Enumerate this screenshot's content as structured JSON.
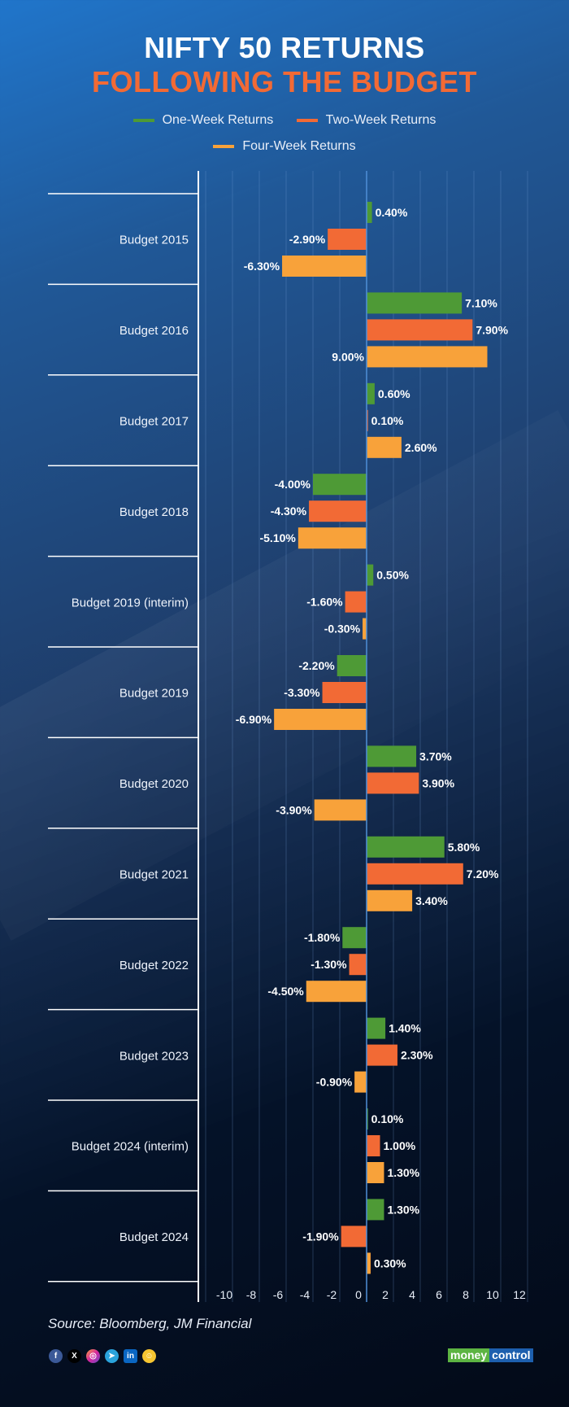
{
  "header": {
    "title_line1": "NIFTY 50 RETURNS",
    "title_line2": "FOLLOWING THE BUDGET"
  },
  "legend": [
    {
      "label": "One-Week Returns",
      "color": "#4e9a36"
    },
    {
      "label": "Two-Week Returns",
      "color": "#f26a35"
    },
    {
      "label": "Four-Week Returns",
      "color": "#f8a23a"
    }
  ],
  "footer": {
    "source": "Source: Bloomberg, JM Financial",
    "social_icons": [
      "facebook-icon",
      "x-icon",
      "instagram-icon",
      "telegram-icon",
      "linkedin-icon",
      "snapchat-icon"
    ],
    "logo_part1": "money",
    "logo_part2": "control"
  },
  "chart_data": {
    "type": "bar",
    "orientation": "horizontal",
    "title": "NIFTY 50 RETURNS FOLLOWING THE BUDGET",
    "xlabel": "",
    "ylabel": "",
    "xlim": [
      -12,
      12
    ],
    "x_ticks": [
      -10,
      -8,
      -6,
      -4,
      -2,
      0,
      2,
      4,
      6,
      8,
      10,
      12
    ],
    "grid": true,
    "legend_position": "top-center",
    "categories": [
      "Budget 2015",
      "Budget 2016",
      "Budget 2017",
      "Budget 2018",
      "Budget 2019 (interim)",
      "Budget 2019",
      "Budget 2020",
      "Budget 2021",
      "Budget 2022",
      "Budget 2023",
      "Budget 2024 (interim)",
      "Budget 2024"
    ],
    "series": [
      {
        "name": "One-Week Returns",
        "color": "#4e9a36",
        "values": [
          0.4,
          7.1,
          0.6,
          -4.0,
          0.5,
          -2.2,
          3.7,
          5.8,
          -1.8,
          1.4,
          0.1,
          1.3
        ],
        "labels": [
          "0.40%",
          "7.10%",
          "0.60%",
          "-4.00%",
          "0.50%",
          "-2.20%",
          "3.70%",
          "5.80%",
          "-1.80%",
          "1.40%",
          "0.10%",
          "1.30%"
        ]
      },
      {
        "name": "Two-Week Returns",
        "color": "#f26a35",
        "values": [
          -2.9,
          7.9,
          0.1,
          -4.3,
          -1.6,
          -3.3,
          3.9,
          7.2,
          -1.3,
          2.3,
          1.0,
          -1.9
        ],
        "labels": [
          "-2.90%",
          "7.90%",
          "0.10%",
          "-4.30%",
          "-1.60%",
          "-3.30%",
          "3.90%",
          "7.20%",
          "-1.30%",
          "2.30%",
          "1.00%",
          "-1.90%"
        ]
      },
      {
        "name": "Four-Week Returns",
        "color": "#f8a23a",
        "values": [
          -6.3,
          9.0,
          2.6,
          -5.1,
          -0.3,
          -6.9,
          -3.9,
          3.4,
          -4.5,
          -0.9,
          1.3,
          0.3
        ],
        "labels": [
          "-6.30%",
          "9.00%",
          "2.60%",
          "-5.10%",
          "-0.30%",
          "-6.90%",
          "-3.90%",
          "3.40%",
          "-4.50%",
          "-0.90%",
          "1.30%",
          "0.30%"
        ]
      }
    ]
  }
}
